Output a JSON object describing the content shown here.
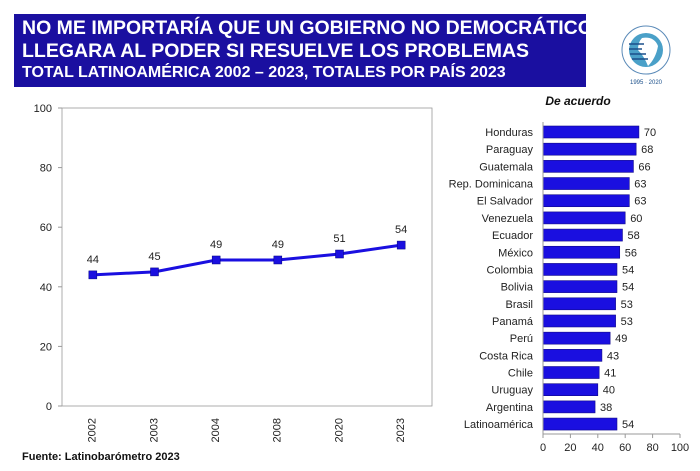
{
  "header": {
    "line1": "NO ME IMPORTARÍA QUE UN  GOBIERNO NO DEMOCRÁTICO",
    "line2": "LLEGARA AL PODER SI RESUELVE LOS PROBLEMAS",
    "line3": "TOTAL LATINOAMÉRICA 2002 – 2023, TOTALES POR PAÍS 2023",
    "logo_text": "LATINOBARÓMETRO 1995 2020",
    "color": "#1a0fa0"
  },
  "source": "Fuente: Latinobarómetro 2023",
  "chart_data": [
    {
      "type": "line",
      "categories": [
        "2002",
        "2003",
        "2004",
        "2008",
        "2020",
        "2023"
      ],
      "values": [
        44,
        45,
        49,
        49,
        51,
        54
      ],
      "ylim": [
        0,
        100
      ],
      "yticks": [
        0,
        20,
        40,
        60,
        80,
        100
      ],
      "grid": false,
      "color": "#1a0fe0",
      "data_labels": true
    },
    {
      "type": "bar",
      "orientation": "horizontal",
      "title": "De acuerdo",
      "categories": [
        "Honduras",
        "Paraguay",
        "Guatemala",
        "Rep. Dominicana",
        "El Salvador",
        "Venezuela",
        "Ecuador",
        "México",
        "Colombia",
        "Bolivia",
        "Brasil",
        "Panamá",
        "Perú",
        "Costa Rica",
        "Chile",
        "Uruguay",
        "Argentina",
        "Latinoamérica"
      ],
      "values": [
        70,
        68,
        66,
        63,
        63,
        60,
        58,
        56,
        54,
        54,
        53,
        53,
        49,
        43,
        41,
        40,
        38,
        54
      ],
      "xlim": [
        0,
        100
      ],
      "xticks": [
        0,
        20,
        40,
        60,
        80,
        100
      ],
      "color": "#1a0fe0"
    }
  ]
}
